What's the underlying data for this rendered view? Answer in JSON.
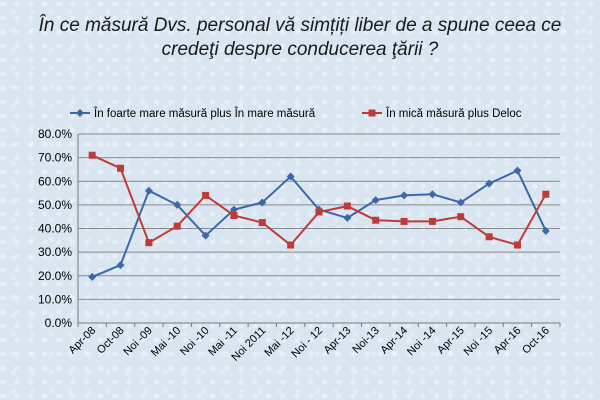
{
  "chart_data": {
    "type": "line",
    "title": "În ce măsură Dvs. personal vă simțiți liber de a spune ceea ce credeţi despre conducerea ţării ?",
    "categories": [
      "Apr-08",
      "Oct-08",
      "Noi -09",
      "Mai -10",
      "Noi -10",
      "Mai -11",
      "Noi 2011",
      "Mai -12",
      "Noi - 12",
      "Apr-13",
      "Noi-13",
      "Apr-14",
      "Noi -14",
      "Apr-15",
      "Noi -15",
      "Apr-16",
      "Oct-16"
    ],
    "series": [
      {
        "name": "În foarte mare măsură plus În mare măsură",
        "color": "#3d68a8",
        "marker": "diamond",
        "values": [
          19.5,
          24.5,
          56.0,
          50.0,
          37.0,
          48.0,
          51.0,
          62.0,
          48.0,
          44.5,
          52.0,
          54.0,
          54.5,
          51.0,
          59.0,
          64.5,
          39.0
        ]
      },
      {
        "name": "În mică măsură plus Deloc",
        "color": "#bf3b38",
        "marker": "square",
        "values": [
          71.0,
          65.5,
          34.0,
          41.0,
          54.0,
          45.5,
          42.5,
          33.0,
          47.0,
          49.5,
          43.5,
          43.0,
          43.0,
          45.0,
          36.5,
          33.0,
          54.5
        ]
      }
    ],
    "ylim": [
      0,
      80
    ],
    "yticks": [
      "0.0%",
      "10.0%",
      "20.0%",
      "30.0%",
      "40.0%",
      "50.0%",
      "60.0%",
      "70.0%",
      "80.0%"
    ],
    "grid": true,
    "legend": "top"
  }
}
